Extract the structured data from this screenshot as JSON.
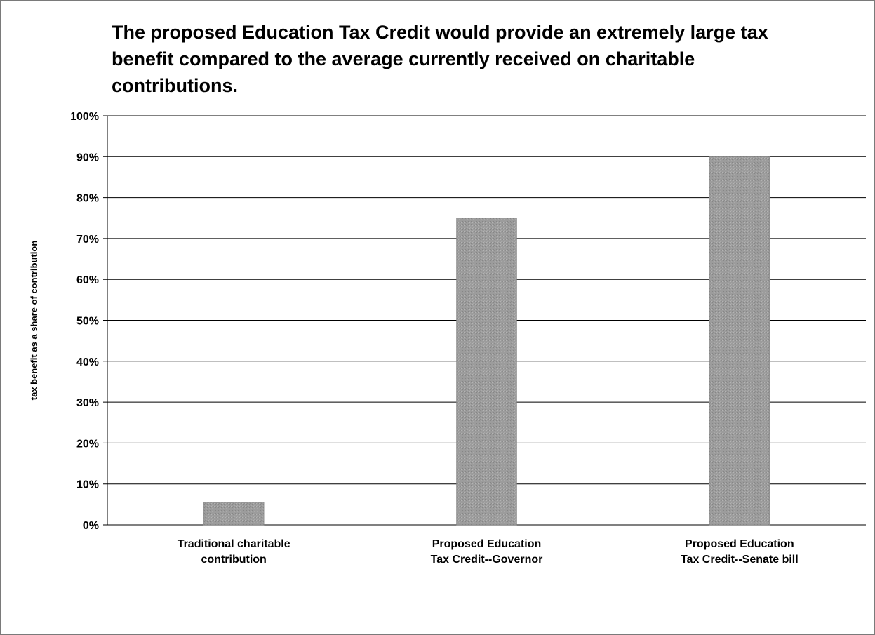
{
  "chart_data": {
    "type": "bar",
    "title": "The proposed Education Tax Credit would provide an extremely large tax benefit compared to the average currently received on charitable contributions.",
    "xlabel": "",
    "ylabel": "tax benefit as a share of contribution",
    "categories": [
      "Traditional charitable\ncontribution",
      "Proposed Education\nTax Credit--Governor",
      "Proposed Education\nTax Credit--Senate bill"
    ],
    "values": [
      5.5,
      75,
      90
    ],
    "ylim": [
      0,
      100
    ],
    "yticks": [
      "0%",
      "10%",
      "20%",
      "30%",
      "40%",
      "50%",
      "60%",
      "70%",
      "80%",
      "90%",
      "100%"
    ],
    "ytick_values": [
      0,
      10,
      20,
      30,
      40,
      50,
      60,
      70,
      80,
      90,
      100
    ],
    "grid": true,
    "legend": "none",
    "bar_color": "#9a9a9a"
  }
}
